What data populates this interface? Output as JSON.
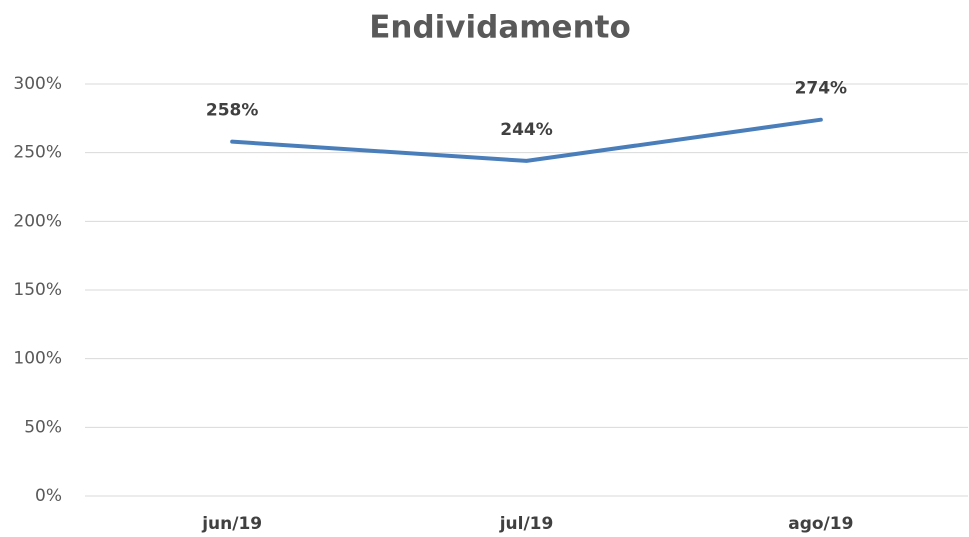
{
  "chart_data": {
    "type": "line",
    "title": "Endividamento",
    "categories": [
      "jun/19",
      "jul/19",
      "ago/19"
    ],
    "series": [
      {
        "name": "Endividamento",
        "color": "#4a7ebb",
        "values": [
          258,
          244,
          274
        ],
        "value_labels": [
          "258%",
          "244%",
          "274%"
        ]
      }
    ],
    "ylim": [
      0,
      300
    ],
    "yticks": [
      {
        "value": 0,
        "label": "0%"
      },
      {
        "value": 50,
        "label": "50%"
      },
      {
        "value": 100,
        "label": "100%"
      },
      {
        "value": 150,
        "label": "150%"
      },
      {
        "value": 200,
        "label": "200%"
      },
      {
        "value": 250,
        "label": "250%"
      },
      {
        "value": 300,
        "label": "300%"
      }
    ],
    "grid": true
  }
}
